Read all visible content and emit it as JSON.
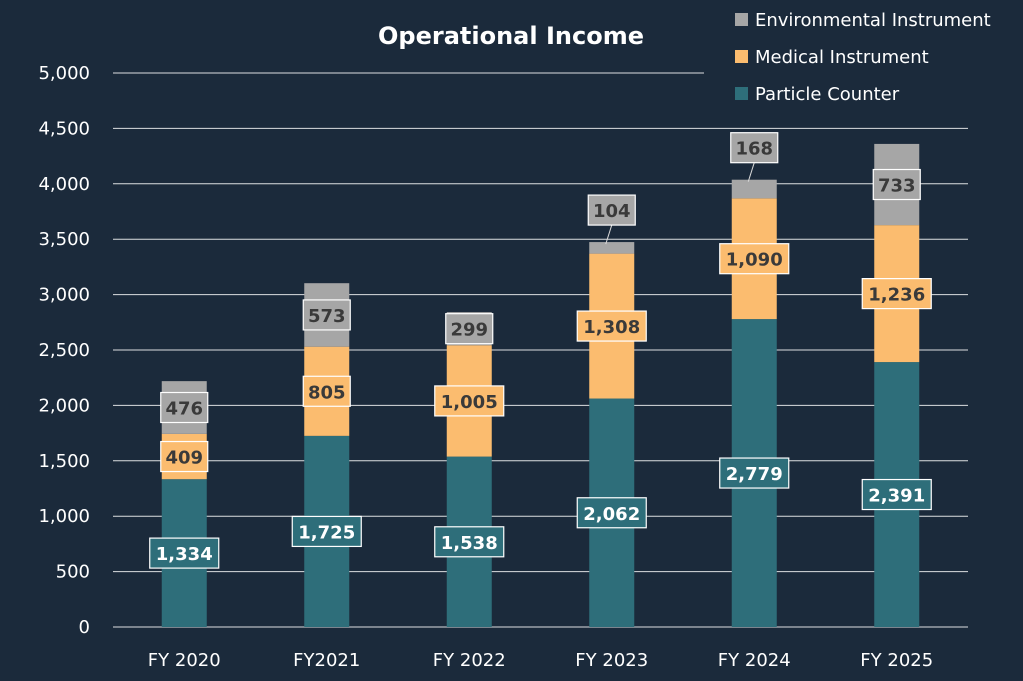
{
  "chart_data": {
    "type": "bar",
    "stacked": true,
    "title": "Operational Income",
    "xlabel": "",
    "ylabel": "",
    "ylim": [
      0,
      5000
    ],
    "yticks": [
      0,
      500,
      1000,
      1500,
      2000,
      2500,
      3000,
      3500,
      4000,
      4500,
      5000
    ],
    "ytick_labels": [
      "0",
      "500",
      "1,000",
      "1,500",
      "2,000",
      "2,500",
      "3,000",
      "3,500",
      "4,000",
      "4,500",
      "5,000"
    ],
    "grid": true,
    "legend_position": "top-right",
    "categories": [
      "FY 2020",
      "FY2021",
      "FY 2022",
      "FY 2023",
      "FY 2024",
      "FY 2025"
    ],
    "series": [
      {
        "name": "Particle Counter",
        "color": "#2e6e7a",
        "label_bg": "#2e6e7a",
        "label_fg": "#ffffff",
        "values": [
          1334,
          1725,
          1538,
          2062,
          2779,
          2391
        ],
        "labels": [
          "1,334",
          "1,725",
          "1,538",
          "2,062",
          "2,779",
          "2,391"
        ]
      },
      {
        "name": "Medical Instrument",
        "color": "#fbbc6f",
        "label_bg": "#fbbc6f",
        "label_fg": "#3a3a3a",
        "values": [
          409,
          805,
          1005,
          1308,
          1090,
          1236
        ],
        "labels": [
          "409",
          "805",
          "1,005",
          "1,308",
          "1,090",
          "1,236"
        ]
      },
      {
        "name": "Environmental Instrument",
        "color": "#a6a6a6",
        "label_bg": "#a6a6a6",
        "label_fg": "#3a3a3a",
        "values": [
          476,
          573,
          299,
          104,
          168,
          733
        ],
        "labels": [
          "476",
          "573",
          "299",
          "104",
          "168",
          "733"
        ]
      }
    ],
    "legend_order": [
      "Environmental Instrument",
      "Medical Instrument",
      "Particle Counter"
    ]
  }
}
